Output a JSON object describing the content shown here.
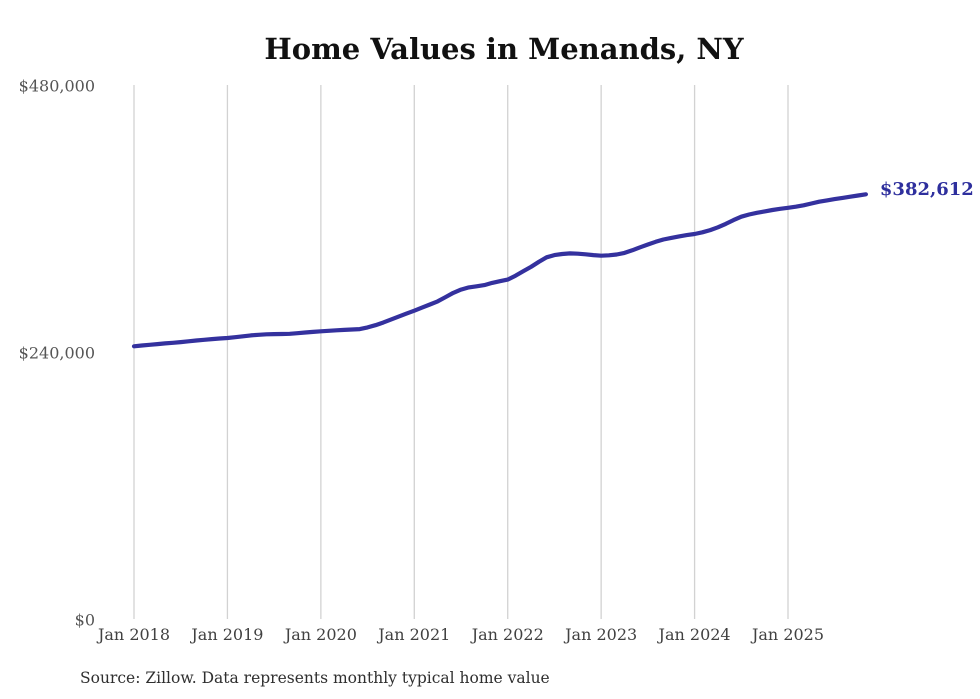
{
  "chart_data": {
    "type": "line",
    "title": "Home Values in Menands, NY",
    "source": "Source: Zillow. Data represents monthly typical home value",
    "end_label": "$382,612",
    "end_value": 382612,
    "x_tick_labels": [
      "Jan 2018",
      "Jan 2019",
      "Jan 2020",
      "Jan 2021",
      "Jan 2022",
      "Jan 2023",
      "Jan 2024",
      "Jan 2025"
    ],
    "y_ticks": [
      {
        "value": 0,
        "label": "$0"
      },
      {
        "value": 240000,
        "label": "$240,000"
      },
      {
        "value": 480000,
        "label": "$480,000"
      }
    ],
    "ylim": [
      0,
      480000
    ],
    "grid": "vertical-only",
    "legend": "none",
    "colors": {
      "line": "#34319e",
      "end_label": "#2e2f9d"
    },
    "series": [
      {
        "name": "Monthly typical home value",
        "start_label": "Jan 2018",
        "interval": "monthly",
        "values": [
          246000,
          246700,
          247400,
          248000,
          248600,
          249200,
          249800,
          250500,
          251200,
          251900,
          252500,
          253000,
          253500,
          254200,
          255000,
          255800,
          256400,
          256800,
          257000,
          257100,
          257300,
          257800,
          258400,
          259000,
          259500,
          260000,
          260400,
          260800,
          261100,
          261500,
          263000,
          265000,
          267300,
          270000,
          272700,
          275400,
          278000,
          280800,
          283600,
          286400,
          290200,
          294000,
          297000,
          299000,
          300000,
          301000,
          303000,
          304500,
          306000,
          309500,
          313500,
          317500,
          322000,
          326000,
          328000,
          329000,
          329500,
          329300,
          328700,
          328000,
          327500,
          327800,
          328500,
          330000,
          332300,
          335000,
          337500,
          340000,
          342000,
          343500,
          344800,
          346000,
          347000,
          348500,
          350500,
          353000,
          356000,
          359500,
          362500,
          364500,
          366000,
          367300,
          368500,
          369600,
          370500,
          371500,
          372800,
          374400,
          376000,
          377200,
          378300,
          379400,
          380500,
          381600,
          382612
        ]
      }
    ]
  }
}
